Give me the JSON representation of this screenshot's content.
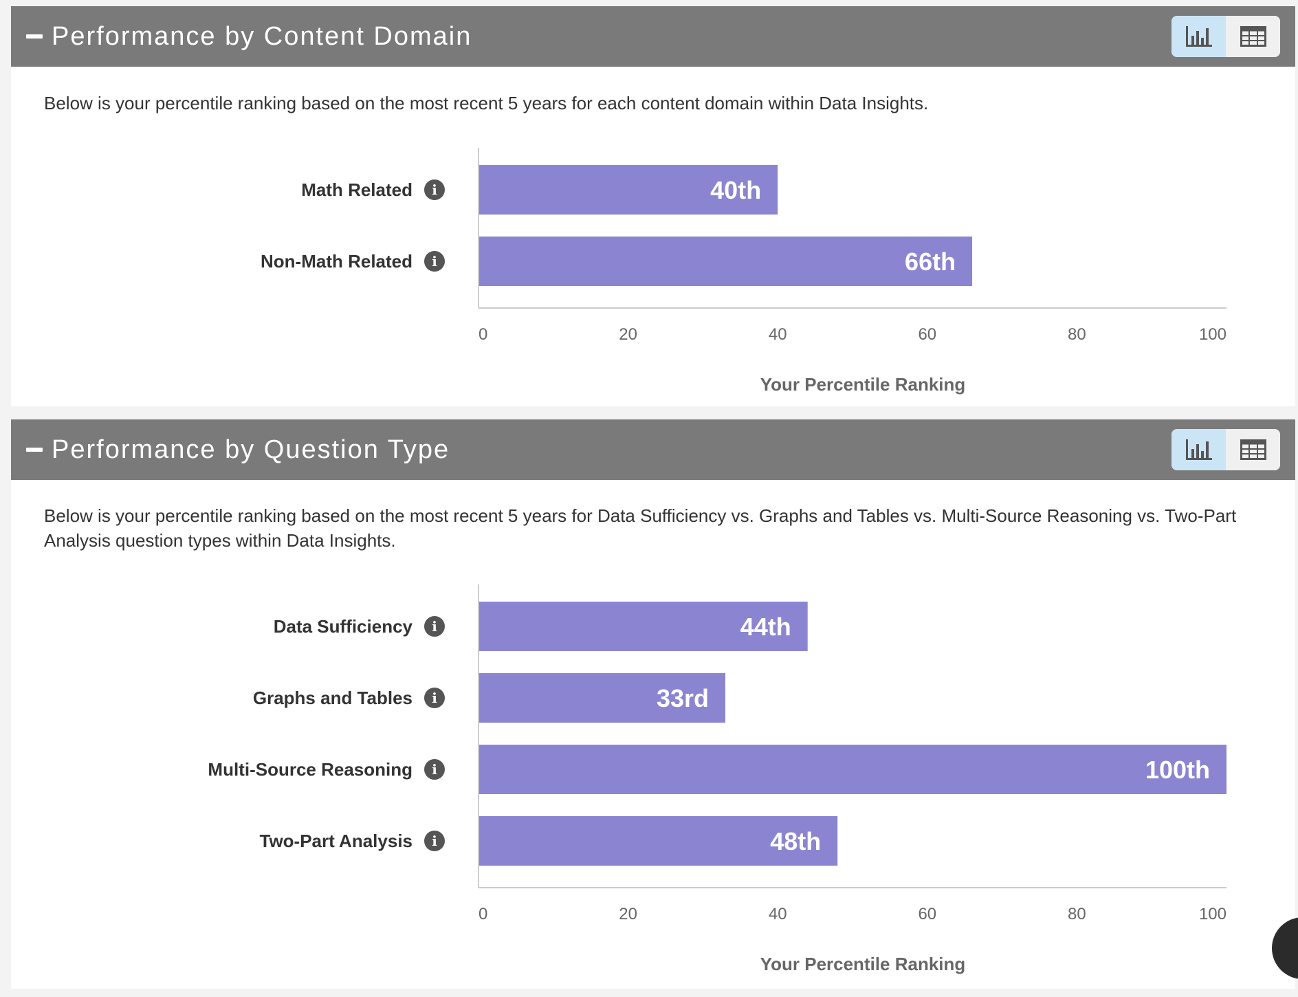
{
  "colors": {
    "header_bg": "#7a7a7a",
    "bar": "#8b85d1",
    "active_toggle": "#cce5f6",
    "icon": "#555555"
  },
  "panels": [
    {
      "title": "Performance by Content Domain",
      "description": "Below is your percentile ranking based on the most recent 5 years for each content domain within Data Insights.",
      "view_toggle": {
        "active": "chart",
        "chart_icon": "bar-chart-icon",
        "table_icon": "table-grid-icon"
      }
    },
    {
      "title": "Performance by Question Type",
      "description": "Below is your percentile ranking based on the most recent 5 years for Data Sufficiency vs. Graphs and Tables vs. Multi-Source Reasoning vs. Two-Part Analysis question types within Data Insights.",
      "view_toggle": {
        "active": "chart",
        "chart_icon": "bar-chart-icon",
        "table_icon": "table-grid-icon"
      }
    }
  ],
  "chart_data": [
    {
      "type": "bar",
      "orientation": "horizontal",
      "categories": [
        "Math Related",
        "Non-Math Related"
      ],
      "values": [
        40,
        66
      ],
      "data_labels": [
        "40th",
        "66th"
      ],
      "xlabel": "Your Percentile Ranking",
      "ylabel": "",
      "xlim": [
        0,
        100
      ],
      "ticks": [
        0,
        20,
        40,
        60,
        80,
        100
      ],
      "grid": false
    },
    {
      "type": "bar",
      "orientation": "horizontal",
      "categories": [
        "Data Sufficiency",
        "Graphs and Tables",
        "Multi-Source Reasoning",
        "Two-Part Analysis"
      ],
      "values": [
        44,
        33,
        100,
        48
      ],
      "data_labels": [
        "44th",
        "33rd",
        "100th",
        "48th"
      ],
      "xlabel": "Your Percentile Ranking",
      "ylabel": "",
      "xlim": [
        0,
        100
      ],
      "ticks": [
        0,
        20,
        40,
        60,
        80,
        100
      ],
      "grid": false
    }
  ]
}
